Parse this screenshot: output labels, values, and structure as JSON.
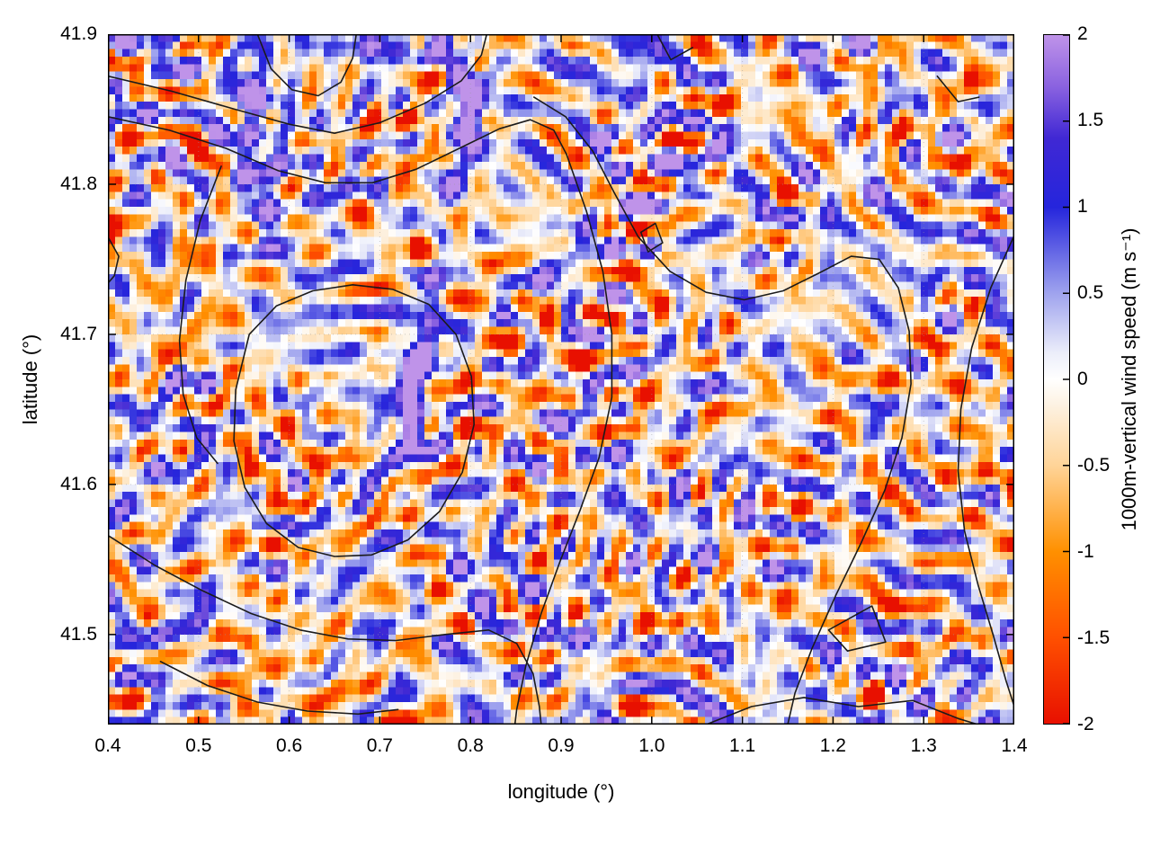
{
  "chart_data": {
    "type": "heatmap",
    "title": "",
    "xlabel": "longitude (°)",
    "ylabel": "latitude (°)",
    "xlim": [
      0.4,
      1.4
    ],
    "ylim": [
      41.44,
      41.9
    ],
    "x_ticks": [
      {
        "label": "0.4",
        "value": 0.4
      },
      {
        "label": "0.5",
        "value": 0.5
      },
      {
        "label": "0.6",
        "value": 0.6
      },
      {
        "label": "0.7",
        "value": 0.7
      },
      {
        "label": "0.8",
        "value": 0.8
      },
      {
        "label": "0.9",
        "value": 0.9
      },
      {
        "label": "1.0",
        "value": 1.0
      },
      {
        "label": "1.1",
        "value": 1.1
      },
      {
        "label": "1.2",
        "value": 1.2
      },
      {
        "label": "1.3",
        "value": 1.3
      },
      {
        "label": "1.4",
        "value": 1.4
      }
    ],
    "y_ticks": [
      {
        "label": "41.5",
        "value": 41.5
      },
      {
        "label": "41.6",
        "value": 41.6
      },
      {
        "label": "41.7",
        "value": 41.7
      },
      {
        "label": "41.8",
        "value": 41.8
      },
      {
        "label": "41.9",
        "value": 41.9
      }
    ],
    "grid_lines": {
      "x": [
        0.5,
        0.6,
        0.7,
        0.8,
        0.9,
        1.0,
        1.1,
        1.2,
        1.3
      ],
      "y": [
        41.5,
        41.6,
        41.7,
        41.8
      ]
    },
    "colorbar": {
      "label": "1000m-vertical wind speed (m s⁻¹)",
      "range": [
        -2,
        2
      ],
      "ticks": [
        {
          "label": "2",
          "value": 2
        },
        {
          "label": "1.5",
          "value": 1.5
        },
        {
          "label": "1",
          "value": 1
        },
        {
          "label": "0.5",
          "value": 0.5
        },
        {
          "label": "0",
          "value": 0
        },
        {
          "label": "-0.5",
          "value": -0.5
        },
        {
          "label": "-1",
          "value": -1
        },
        {
          "label": "-1.5",
          "value": -1.5
        },
        {
          "label": "-2",
          "value": -2
        }
      ]
    },
    "colors": {
      "contour": "#1b1b1b",
      "grid": "#9a9a9a",
      "axis": "#000000",
      "background": "#ffffff"
    },
    "palette": [
      {
        "v": -2.0,
        "c": "#e81000"
      },
      {
        "v": -1.5,
        "c": "#ff5000"
      },
      {
        "v": -1.0,
        "c": "#ff9000"
      },
      {
        "v": -0.5,
        "c": "#ffd498"
      },
      {
        "v": -0.15,
        "c": "#fdf2e2"
      },
      {
        "v": 0.0,
        "c": "#ffffff"
      },
      {
        "v": 0.15,
        "c": "#eceefa"
      },
      {
        "v": 0.5,
        "c": "#9fa3ee"
      },
      {
        "v": 1.0,
        "c": "#2525dc"
      },
      {
        "v": 1.4,
        "c": "#4028d4"
      },
      {
        "v": 1.7,
        "c": "#8a62e0"
      },
      {
        "v": 2.0,
        "c": "#bf93e9"
      }
    ],
    "field": {
      "nx": 126,
      "ny": 92,
      "seed": 7,
      "bias": -0.07,
      "gain": 0.92,
      "envScale": 0.085,
      "envMul": 1.7,
      "envSub": 0.5,
      "broadAmp": 0.5,
      "broadScale": 0.16,
      "fineAmp": 0.28,
      "fineScale": 0.8,
      "clamp": 2.05,
      "waves": [
        {
          "lambda": 5.2,
          "theta": 78,
          "amp": 1.05,
          "phase": 0.4,
          "off": 11
        },
        {
          "lambda": 6.5,
          "theta": 112,
          "amp": 1.0,
          "phase": 2.1,
          "off": 29
        },
        {
          "lambda": 4.4,
          "theta": 35,
          "amp": 0.9,
          "phase": 4.4,
          "off": 47
        },
        {
          "lambda": 7.5,
          "theta": 150,
          "amp": 0.95,
          "phase": 1.1,
          "off": 66
        },
        {
          "lambda": 5.8,
          "theta": 95,
          "amp": 1.0,
          "phase": 3.3,
          "off": 83
        },
        {
          "lambda": 4.8,
          "theta": 10,
          "amp": 0.85,
          "phase": 5.2,
          "off": 104
        },
        {
          "lambda": 8.5,
          "theta": 55,
          "amp": 0.9,
          "phase": 0.9,
          "off": 123
        },
        {
          "lambda": 6.0,
          "theta": 135,
          "amp": 0.95,
          "phase": 2.8,
          "off": 141
        }
      ]
    },
    "ridge": {
      "x0": 0.765,
      "meanderAmp": 0.025,
      "meanderFreq": 20,
      "meanderAmp2": 0.012,
      "meanderFreq2": 47,
      "width": 0.015,
      "amp": 2.9,
      "latMin": 41.555,
      "fade": 0.09,
      "segFreq": 33,
      "segPhase": 0.6,
      "segBase": 0.62,
      "segVar": 0.48
    },
    "blobs": [
      {
        "x": 0.575,
        "y": 41.79,
        "a": 1.25,
        "rx": 0.016,
        "ry": 0.055
      },
      {
        "x": 0.553,
        "y": 41.862,
        "a": 1.45,
        "rx": 0.02,
        "ry": 0.032
      },
      {
        "x": 0.7,
        "y": 41.893,
        "a": 1.5,
        "rx": 0.026,
        "ry": 0.013
      },
      {
        "x": 0.47,
        "y": 41.876,
        "a": 1.2,
        "rx": 0.016,
        "ry": 0.02
      },
      {
        "x": 1.005,
        "y": 41.812,
        "a": 2.2,
        "rx": 0.01,
        "ry": 0.007
      },
      {
        "x": 1.02,
        "y": 41.885,
        "a": 1.0,
        "rx": 0.02,
        "ry": 0.012
      },
      {
        "x": 0.93,
        "y": 41.888,
        "a": 1.2,
        "rx": 0.013,
        "ry": 0.014
      },
      {
        "x": 1.175,
        "y": 41.883,
        "a": 1.3,
        "rx": 0.015,
        "ry": 0.015
      },
      {
        "x": 1.39,
        "y": 41.893,
        "a": 1.2,
        "rx": 0.015,
        "ry": 0.012
      },
      {
        "x": 1.345,
        "y": 41.843,
        "a": 1.25,
        "rx": 0.012,
        "ry": 0.016
      },
      {
        "x": 1.352,
        "y": 41.868,
        "a": -1.9,
        "rx": 0.008,
        "ry": 0.01
      },
      {
        "x": 0.403,
        "y": 41.77,
        "a": -2.2,
        "rx": 0.007,
        "ry": 0.013
      },
      {
        "x": 0.407,
        "y": 41.722,
        "a": -1.6,
        "rx": 0.007,
        "ry": 0.011
      },
      {
        "x": 0.74,
        "y": 41.757,
        "a": -1.9,
        "rx": 0.007,
        "ry": 0.009
      },
      {
        "x": 0.73,
        "y": 41.443,
        "a": -1.5,
        "rx": 0.026,
        "ry": 0.008
      },
      {
        "x": 0.99,
        "y": 41.452,
        "a": -1.3,
        "rx": 0.016,
        "ry": 0.009
      },
      {
        "x": 0.5,
        "y": 41.498,
        "a": 1.3,
        "rx": 0.018,
        "ry": 0.016
      },
      {
        "x": 0.455,
        "y": 41.468,
        "a": 1.15,
        "rx": 0.015,
        "ry": 0.013
      },
      {
        "x": 0.81,
        "y": 41.52,
        "a": 1.0,
        "rx": 0.018,
        "ry": 0.03
      },
      {
        "x": 0.97,
        "y": 41.6,
        "a": 1.15,
        "rx": 0.012,
        "ry": 0.026
      },
      {
        "x": 1.04,
        "y": 41.64,
        "a": 1.05,
        "rx": 0.012,
        "ry": 0.028
      },
      {
        "x": 1.1,
        "y": 41.585,
        "a": 1.0,
        "rx": 0.014,
        "ry": 0.02
      }
    ],
    "contours": [
      [
        [
          0.4,
          41.872
        ],
        [
          0.47,
          41.862
        ],
        [
          0.54,
          41.85
        ],
        [
          0.6,
          41.84
        ],
        [
          0.65,
          41.834
        ],
        [
          0.7,
          41.841
        ],
        [
          0.75,
          41.854
        ],
        [
          0.79,
          41.869
        ],
        [
          0.812,
          41.886
        ],
        [
          0.818,
          41.9
        ]
      ],
      [
        [
          0.565,
          41.9
        ],
        [
          0.58,
          41.877
        ],
        [
          0.603,
          41.863
        ],
        [
          0.632,
          41.859
        ],
        [
          0.657,
          41.868
        ],
        [
          0.67,
          41.884
        ],
        [
          0.674,
          41.9
        ]
      ],
      [
        [
          0.4,
          41.845
        ],
        [
          0.468,
          41.836
        ],
        [
          0.53,
          41.824
        ],
        [
          0.588,
          41.809
        ],
        [
          0.64,
          41.801
        ],
        [
          0.692,
          41.801
        ],
        [
          0.74,
          41.81
        ],
        [
          0.788,
          41.824
        ],
        [
          0.832,
          41.837
        ],
        [
          0.866,
          41.843
        ],
        [
          0.892,
          41.836
        ],
        [
          0.906,
          41.82
        ],
        [
          0.928,
          41.782
        ],
        [
          0.946,
          41.742
        ],
        [
          0.956,
          41.7
        ],
        [
          0.956,
          41.658
        ],
        [
          0.942,
          41.618
        ],
        [
          0.921,
          41.583
        ],
        [
          0.899,
          41.549
        ],
        [
          0.878,
          41.514
        ],
        [
          0.861,
          41.479
        ],
        [
          0.851,
          41.45
        ],
        [
          0.849,
          41.44
        ]
      ],
      [
        [
          0.87,
          41.858
        ],
        [
          0.905,
          41.845
        ],
        [
          0.935,
          41.822
        ],
        [
          0.958,
          41.795
        ],
        [
          0.985,
          41.765
        ],
        [
          1.02,
          41.742
        ],
        [
          1.06,
          41.728
        ],
        [
          1.102,
          41.723
        ],
        [
          1.145,
          41.729
        ],
        [
          1.185,
          41.741
        ],
        [
          1.22,
          41.752
        ],
        [
          1.251,
          41.75
        ],
        [
          1.272,
          41.731
        ],
        [
          1.284,
          41.702
        ],
        [
          1.286,
          41.667
        ],
        [
          1.276,
          41.631
        ],
        [
          1.257,
          41.596
        ],
        [
          1.231,
          41.561
        ],
        [
          1.203,
          41.526
        ],
        [
          1.177,
          41.491
        ],
        [
          1.158,
          41.461
        ],
        [
          1.15,
          41.44
        ]
      ],
      [
        [
          0.525,
          41.812
        ],
        [
          0.502,
          41.776
        ],
        [
          0.486,
          41.736
        ],
        [
          0.479,
          41.696
        ],
        [
          0.483,
          41.66
        ],
        [
          0.498,
          41.631
        ],
        [
          0.521,
          41.614
        ]
      ],
      [
        [
          0.556,
          41.7
        ],
        [
          0.586,
          41.719
        ],
        [
          0.626,
          41.729
        ],
        [
          0.67,
          41.733
        ],
        [
          0.714,
          41.73
        ],
        [
          0.754,
          41.72
        ],
        [
          0.784,
          41.7
        ],
        [
          0.801,
          41.672
        ],
        [
          0.804,
          41.64
        ],
        [
          0.791,
          41.608
        ],
        [
          0.766,
          41.582
        ],
        [
          0.731,
          41.563
        ],
        [
          0.691,
          41.553
        ],
        [
          0.65,
          41.552
        ],
        [
          0.61,
          41.558
        ],
        [
          0.575,
          41.574
        ],
        [
          0.551,
          41.598
        ],
        [
          0.539,
          41.629
        ],
        [
          0.541,
          41.663
        ],
        [
          0.556,
          41.7
        ]
      ],
      [
        [
          0.4,
          41.566
        ],
        [
          0.452,
          41.546
        ],
        [
          0.505,
          41.529
        ],
        [
          0.558,
          41.514
        ],
        [
          0.612,
          41.503
        ],
        [
          0.665,
          41.497
        ],
        [
          0.718,
          41.496
        ],
        [
          0.772,
          41.5
        ],
        [
          0.82,
          41.503
        ],
        [
          0.851,
          41.494
        ],
        [
          0.869,
          41.474
        ],
        [
          0.876,
          41.452
        ],
        [
          0.878,
          41.44
        ]
      ],
      [
        [
          0.458,
          41.482
        ],
        [
          0.51,
          41.466
        ],
        [
          0.565,
          41.455
        ],
        [
          0.62,
          41.449
        ],
        [
          0.676,
          41.447
        ],
        [
          0.72,
          41.45
        ]
      ],
      [
        [
          1.06,
          41.44
        ],
        [
          1.11,
          41.452
        ],
        [
          1.168,
          41.458
        ],
        [
          1.228,
          41.452
        ],
        [
          1.288,
          41.456
        ],
        [
          1.338,
          41.444
        ],
        [
          1.36,
          41.44
        ]
      ],
      [
        [
          1.195,
          41.503
        ],
        [
          1.243,
          41.519
        ],
        [
          1.258,
          41.495
        ],
        [
          1.216,
          41.489
        ],
        [
          1.195,
          41.503
        ]
      ],
      [
        [
          0.4,
          41.765
        ],
        [
          0.412,
          41.752
        ],
        [
          0.407,
          41.739
        ],
        [
          0.4,
          41.734
        ]
      ],
      [
        [
          0.988,
          41.768
        ],
        [
          1.004,
          41.774
        ],
        [
          1.012,
          41.761
        ],
        [
          0.996,
          41.755
        ],
        [
          0.988,
          41.768
        ]
      ],
      [
        [
          1.006,
          41.9
        ],
        [
          1.021,
          41.883
        ],
        [
          1.045,
          41.891
        ]
      ],
      [
        [
          1.315,
          41.872
        ],
        [
          1.338,
          41.855
        ],
        [
          1.361,
          41.858
        ]
      ],
      [
        [
          1.4,
          41.766
        ],
        [
          1.374,
          41.731
        ],
        [
          1.353,
          41.691
        ],
        [
          1.341,
          41.65
        ],
        [
          1.338,
          41.609
        ],
        [
          1.345,
          41.569
        ],
        [
          1.36,
          41.533
        ],
        [
          1.377,
          41.499
        ],
        [
          1.391,
          41.469
        ],
        [
          1.4,
          41.452
        ]
      ]
    ]
  }
}
